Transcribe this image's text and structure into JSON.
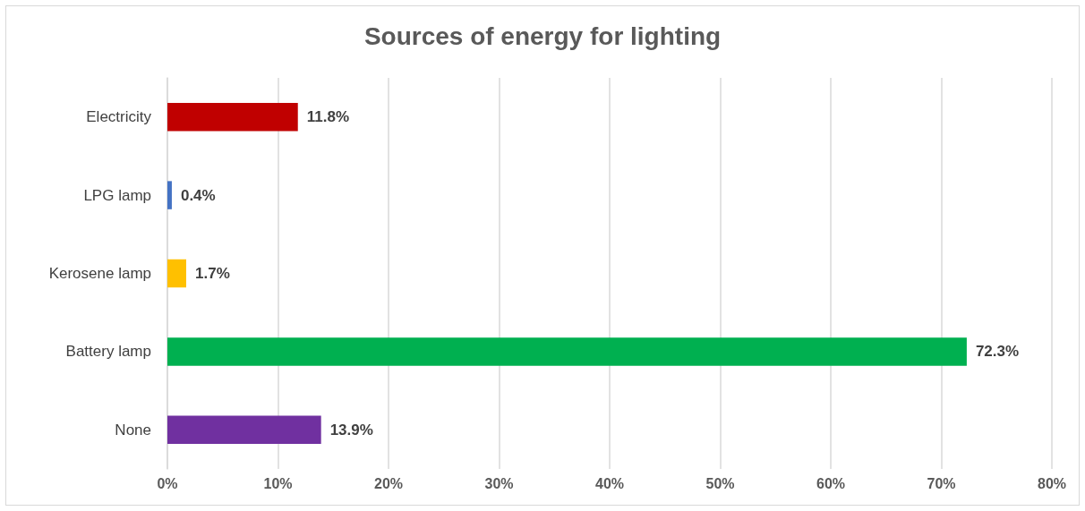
{
  "chart_data": {
    "type": "bar",
    "orientation": "horizontal",
    "title": "Sources of energy for lighting",
    "categories": [
      "Electricity",
      "LPG lamp",
      "Kerosene lamp",
      "Battery lamp",
      "None"
    ],
    "values": [
      11.8,
      0.4,
      1.7,
      72.3,
      13.9
    ],
    "colors": [
      "#c00000",
      "#4472c4",
      "#ffc000",
      "#00b050",
      "#7030a0"
    ],
    "value_labels": [
      "11.8%",
      "0.4%",
      "1.7%",
      "72.3%",
      "13.9%"
    ],
    "xlim": [
      0,
      80
    ],
    "xticks": [
      {
        "value": 0,
        "label": "0%"
      },
      {
        "value": 10,
        "label": "10%"
      },
      {
        "value": 20,
        "label": "20%"
      },
      {
        "value": 30,
        "label": "30%"
      },
      {
        "value": 40,
        "label": "40%"
      },
      {
        "value": 50,
        "label": "50%"
      },
      {
        "value": 60,
        "label": "60%"
      },
      {
        "value": 70,
        "label": "70%"
      },
      {
        "value": 80,
        "label": "80%"
      }
    ],
    "grid": "x"
  }
}
